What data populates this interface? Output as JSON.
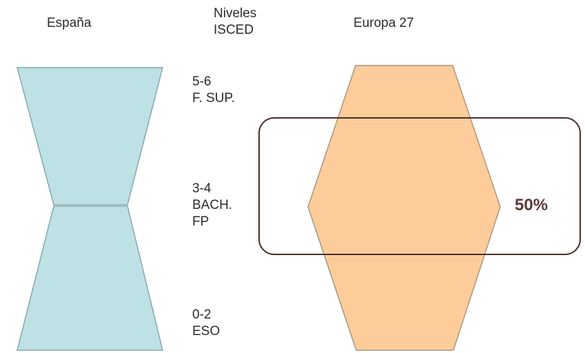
{
  "headers": {
    "left": "España",
    "middle": [
      "Niveles",
      "ISCED"
    ],
    "right": "Europa 27"
  },
  "levels": {
    "high": [
      "5-6",
      "F. SUP."
    ],
    "mid": [
      "3-4",
      "BACH.",
      "FP"
    ],
    "low": [
      "0-2",
      "ESO"
    ]
  },
  "highlight": {
    "value": "50%"
  },
  "colors": {
    "spain_fill": "#bde1e4",
    "spain_stroke": "#86a7ab",
    "europe_fill": "#fccc9a",
    "europe_stroke": "#a8977f",
    "highlight_stroke": "#4a2e2b",
    "highlight_text": "#5c3a36"
  }
}
